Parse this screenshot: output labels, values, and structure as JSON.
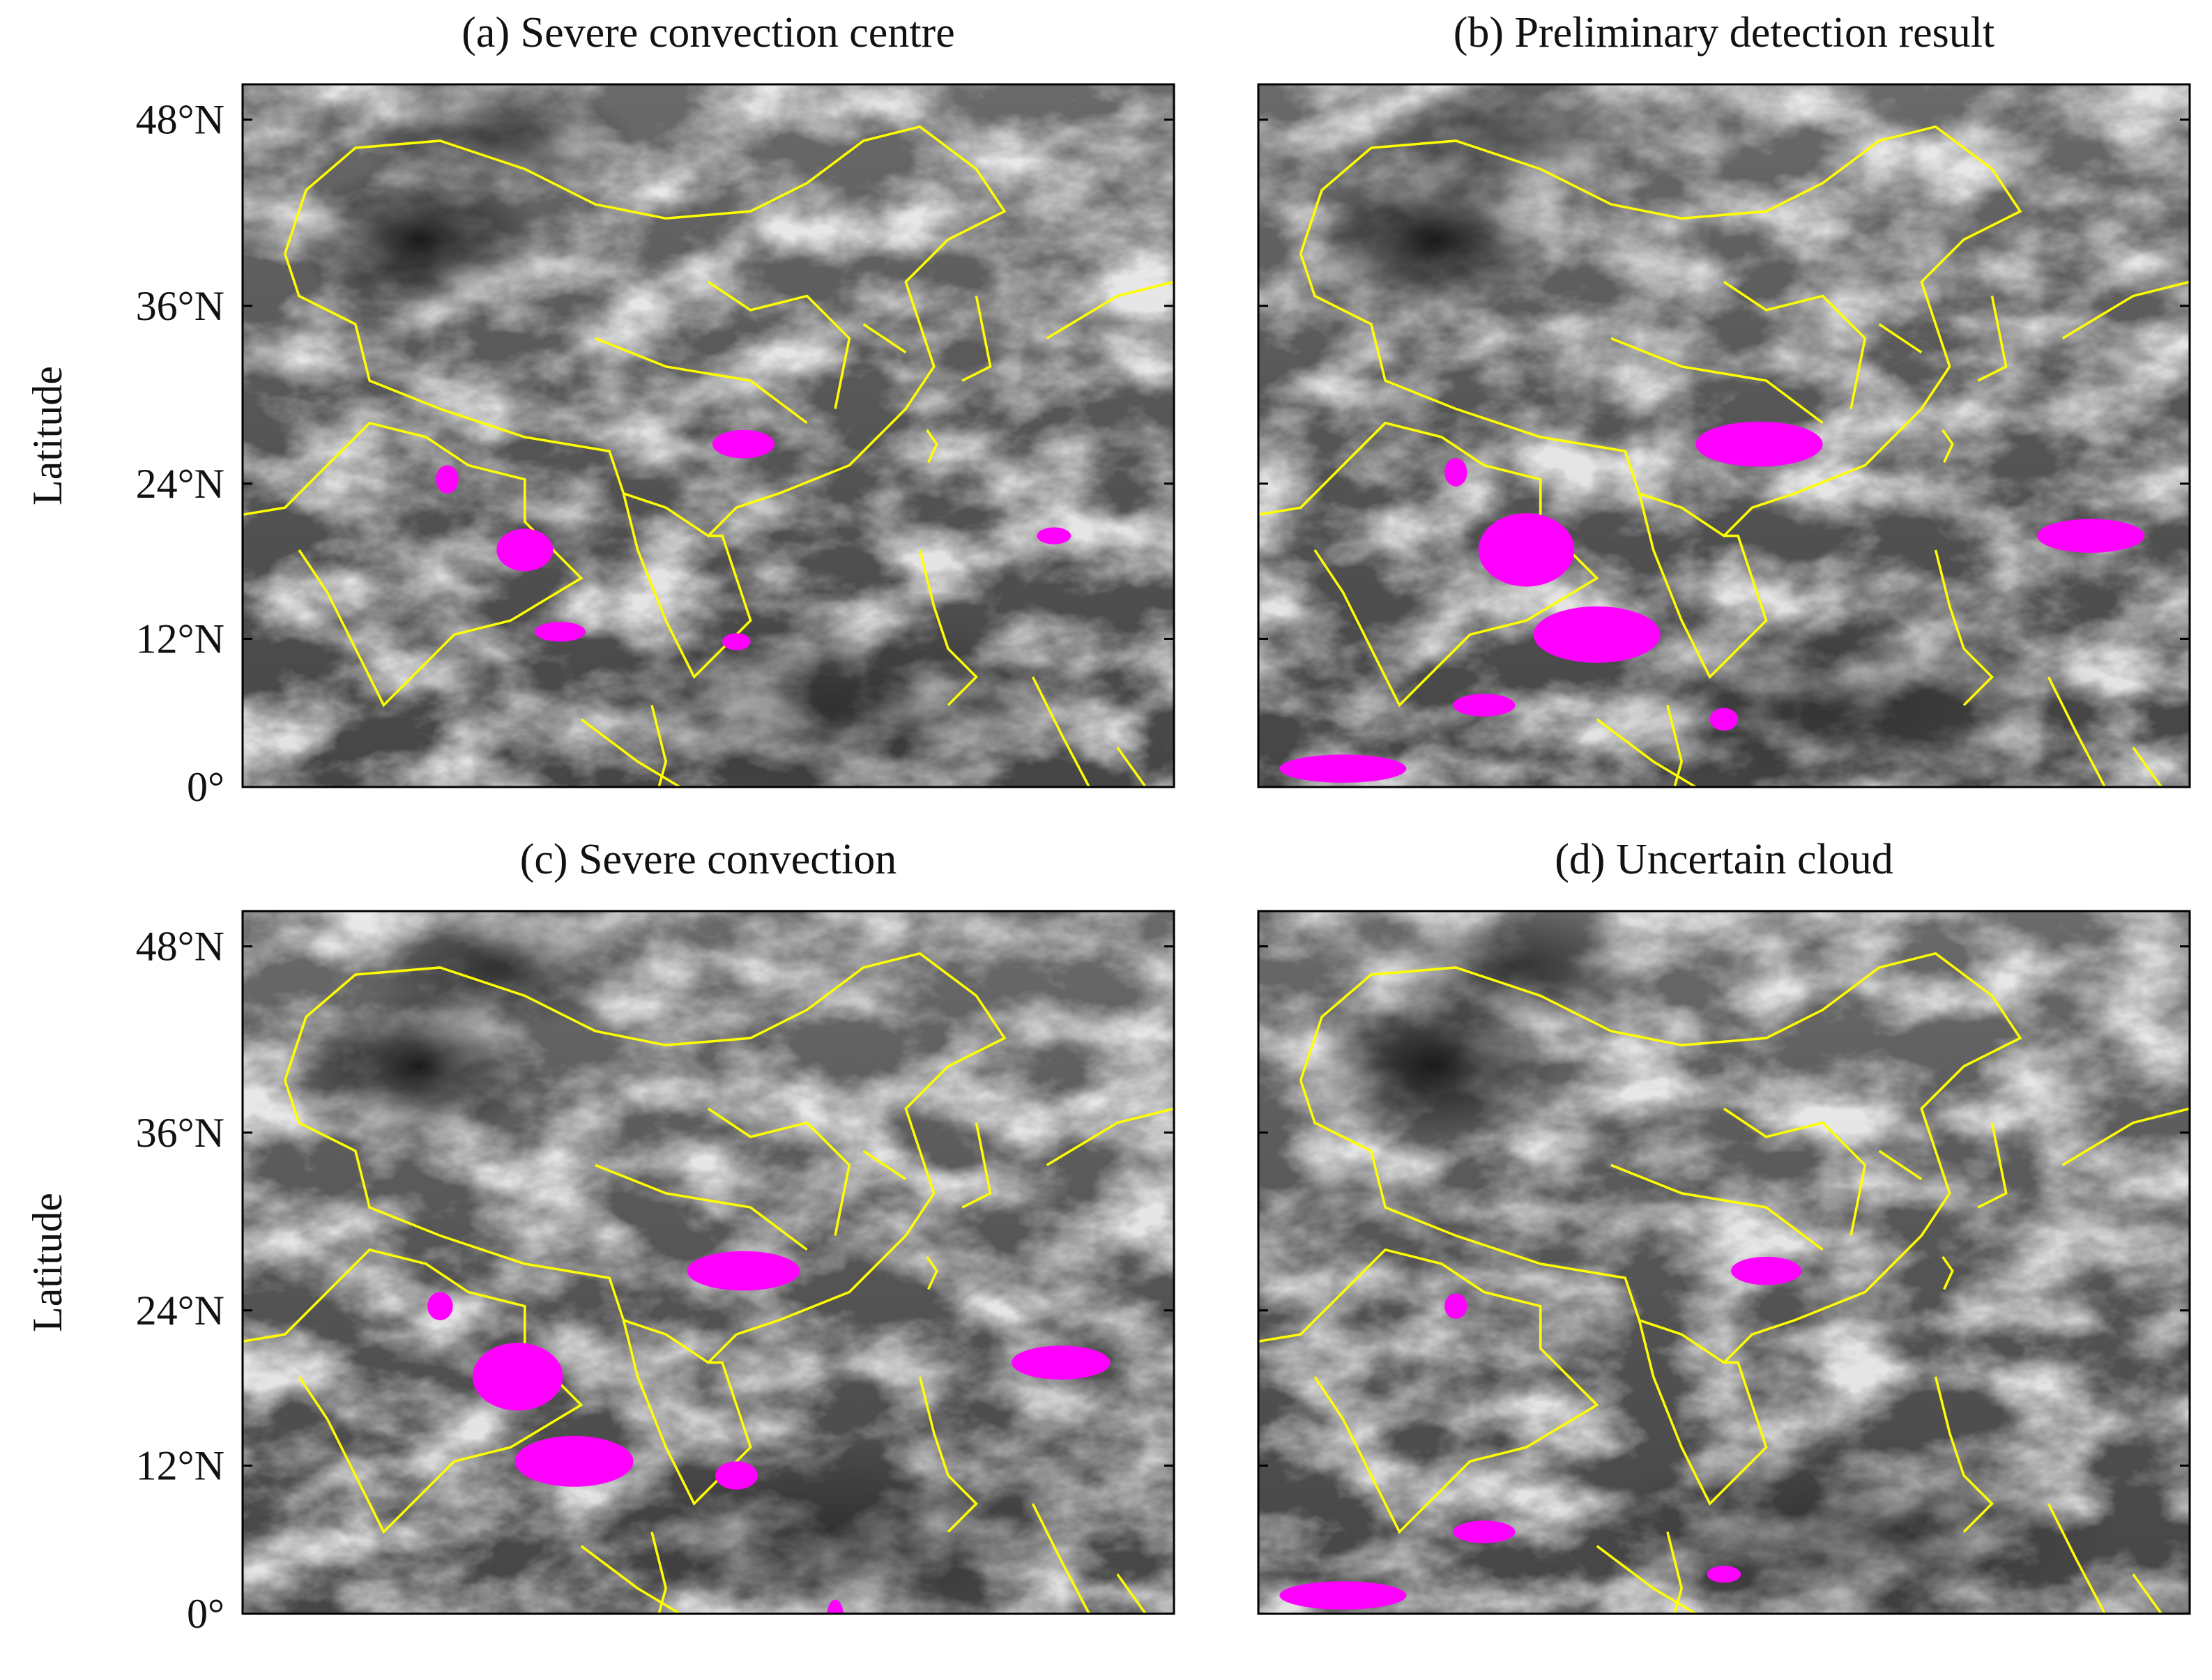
{
  "rows": [
    {
      "y_label": "Latitude",
      "lat_ticks": [
        "48°N",
        "36°N",
        "24°N",
        "12°N",
        "0°"
      ],
      "panels": [
        {
          "title": "(a) Severe convection centre"
        },
        {
          "title": "(b) Preliminary detection result"
        }
      ]
    },
    {
      "y_label": "Latitude",
      "lat_ticks": [
        "48°N",
        "36°N",
        "24°N",
        "12°N",
        "0°"
      ],
      "panels": [
        {
          "title": "(c) Severe convection"
        },
        {
          "title": "(d) Uncertain cloud"
        }
      ]
    }
  ]
}
